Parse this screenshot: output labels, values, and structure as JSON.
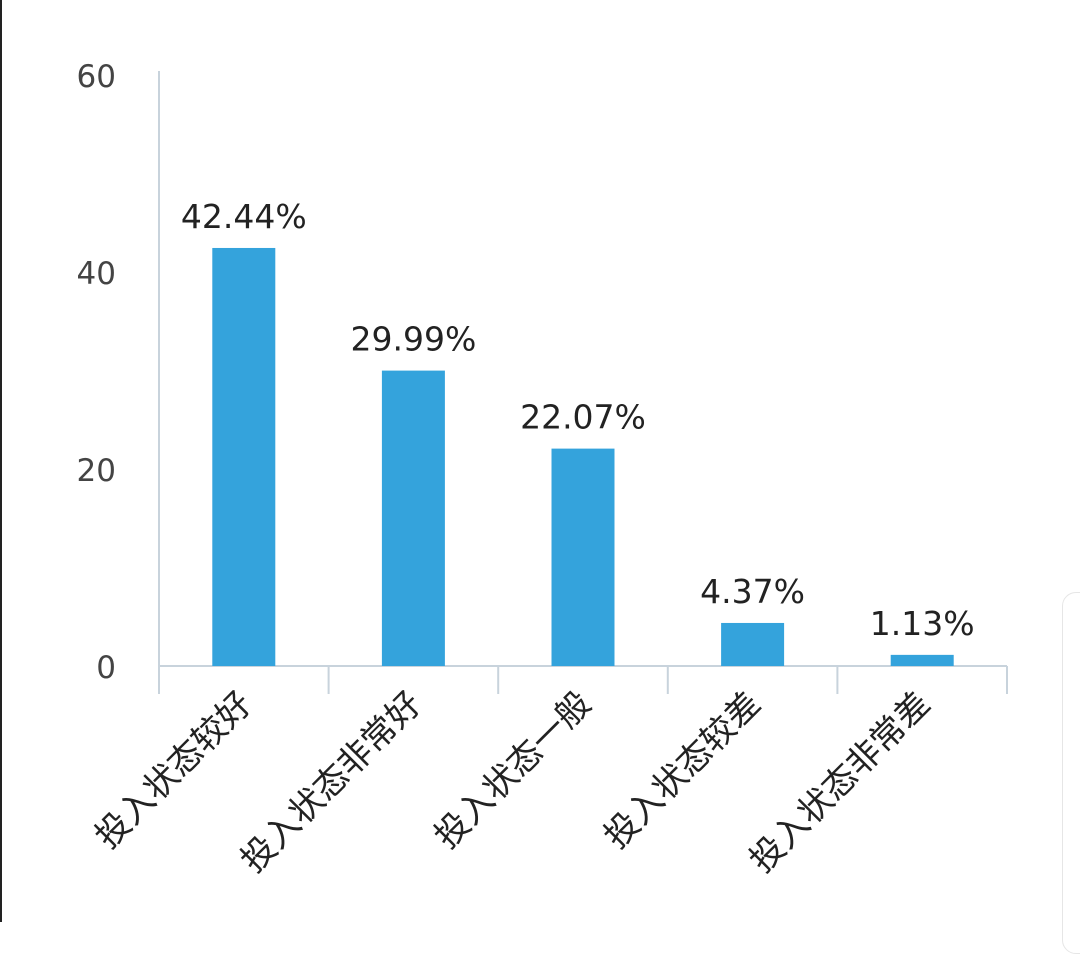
{
  "chart_data": {
    "type": "bar",
    "title": "",
    "xlabel": "",
    "ylabel": "",
    "categories": [
      "投入状态较好",
      "投入状态非常好",
      "投入状态一般",
      "投入状态较差",
      "投入状态非常差"
    ],
    "values": [
      42.44,
      29.99,
      22.07,
      4.37,
      1.13
    ],
    "data_labels": [
      "42.44%",
      "29.99%",
      "22.07%",
      "4.37%",
      "1.13%"
    ],
    "y_ticks": [
      0,
      20,
      40,
      60
    ],
    "ylim": [
      0,
      60
    ],
    "grid": false,
    "legend": "none",
    "colors": {
      "bar": "#34a3dc",
      "axis": "#c8d3dc",
      "text": "#222222",
      "tick_text": "#444444"
    }
  }
}
